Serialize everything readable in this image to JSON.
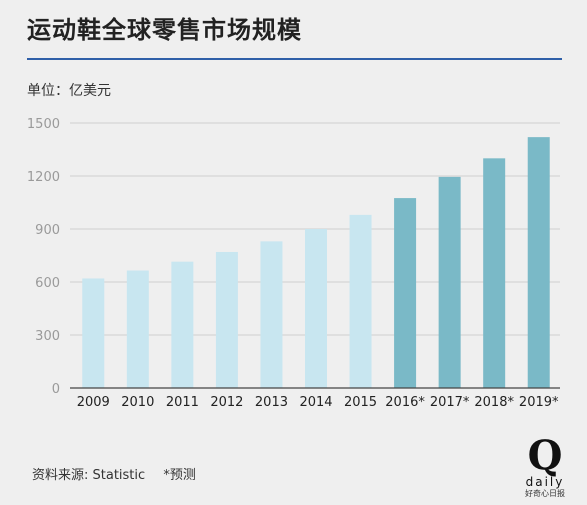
{
  "header": {
    "title": "运动鞋全球零售市场规模"
  },
  "unit_label": "单位：亿美元",
  "source": {
    "label": "资料来源: Statistic",
    "note": "*预测"
  },
  "logo": {
    "letter": "Q",
    "word": "daily",
    "sub": "好奇心日报"
  },
  "colors": {
    "actual": "#c8e6f0",
    "forecast": "#7ab9c7",
    "grid": "#cfcfcf",
    "axis": "#444444",
    "tick": "#9a9a9a",
    "label": "#222222"
  },
  "chart_data": {
    "type": "bar",
    "title": "运动鞋全球零售市场规模",
    "ylabel": "单位：亿美元",
    "xlabel": "",
    "categories": [
      "2009",
      "2010",
      "2011",
      "2012",
      "2013",
      "2014",
      "2015",
      "2016*",
      "2017*",
      "2018*",
      "2019*"
    ],
    "values": [
      620,
      665,
      715,
      770,
      830,
      900,
      980,
      1075,
      1195,
      1300,
      1420
    ],
    "forecast": [
      false,
      false,
      false,
      false,
      false,
      false,
      false,
      true,
      true,
      true,
      true
    ],
    "yticks": [
      0,
      300,
      600,
      900,
      1200,
      1500
    ],
    "ylim": [
      0,
      1500
    ],
    "grid": true
  }
}
